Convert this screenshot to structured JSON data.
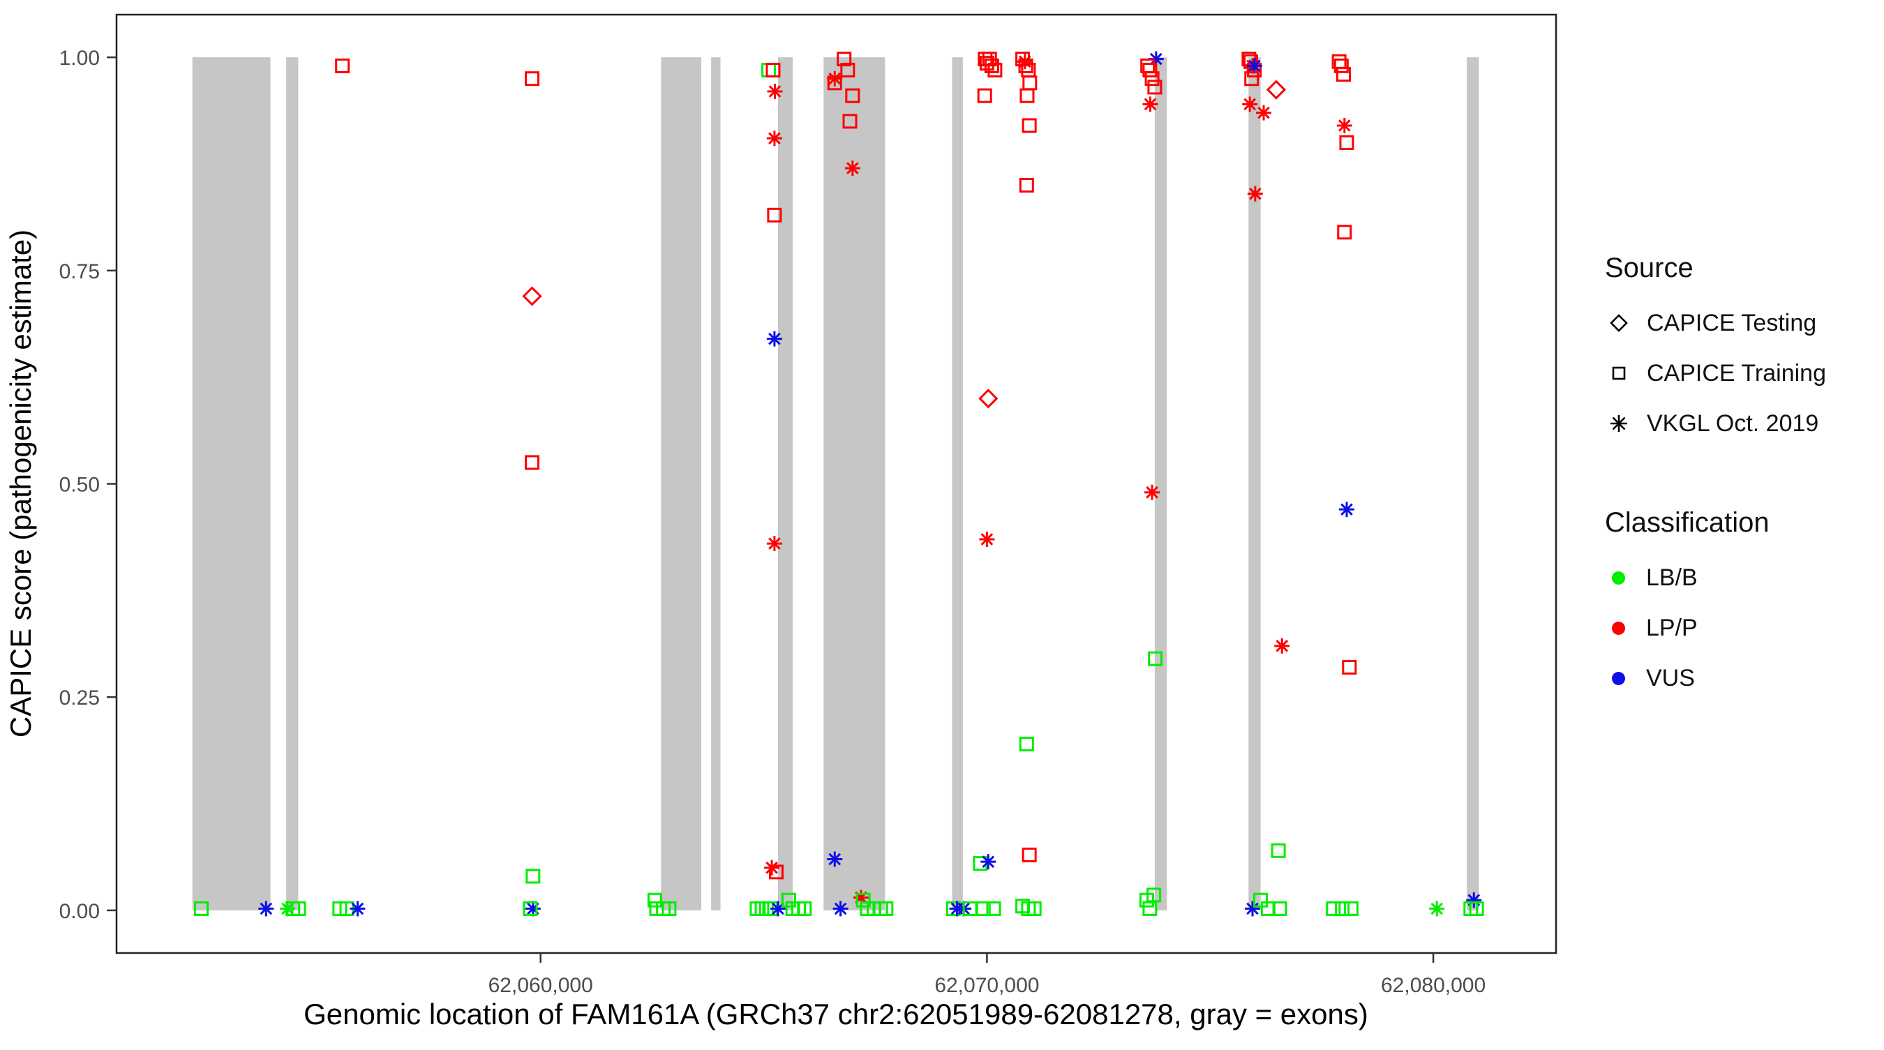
{
  "chart_data": {
    "type": "scatter",
    "xlabel": "Genomic location of FAM161A (GRCh37 chr2:62051989-62081278, gray = exons)",
    "ylabel": "CAPICE score (pathogenicity estimate)",
    "xlim": [
      62050500,
      62082750
    ],
    "ylim": [
      -0.05,
      1.05
    ],
    "grid": false,
    "x_ticks": [
      {
        "value": 62060000,
        "label": "62,060,000"
      },
      {
        "value": 62070000,
        "label": "62,070,000"
      },
      {
        "value": 62080000,
        "label": "62,080,000"
      }
    ],
    "y_ticks": [
      {
        "value": 0.0,
        "label": "0.00"
      },
      {
        "value": 0.25,
        "label": "0.25"
      },
      {
        "value": 0.5,
        "label": "0.50"
      },
      {
        "value": 0.75,
        "label": "0.75"
      },
      {
        "value": 1.0,
        "label": "1.00"
      }
    ],
    "exons_note": "gray vertical bars = exons, span score 0 to 1",
    "exons": [
      [
        62052200,
        62053950
      ],
      [
        62054300,
        62054570
      ],
      [
        62062700,
        62063600
      ],
      [
        62063820,
        62064030
      ],
      [
        62065320,
        62065650
      ],
      [
        62066340,
        62067715
      ],
      [
        62069220,
        62069460
      ],
      [
        62073760,
        62074030
      ],
      [
        62075860,
        62076130
      ],
      [
        62080750,
        62081020
      ]
    ],
    "point_format": [
      "genomic_position",
      "capice_score",
      "source (testing=diamond, training=square, vkgl=asterisk)",
      "classification"
    ],
    "points": [
      [
        62052400,
        0.002,
        "training",
        "LB/B"
      ],
      [
        62053850,
        0.002,
        "vkgl",
        "VUS"
      ],
      [
        62054330,
        0.002,
        "vkgl",
        "LB/B"
      ],
      [
        62054450,
        0.002,
        "training",
        "LB/B"
      ],
      [
        62054580,
        0.002,
        "training",
        "LB/B"
      ],
      [
        62055560,
        0.99,
        "training",
        "LP/P"
      ],
      [
        62055500,
        0.002,
        "training",
        "LB/B"
      ],
      [
        62055660,
        0.002,
        "training",
        "LB/B"
      ],
      [
        62055900,
        0.002,
        "vkgl",
        "VUS"
      ],
      [
        62059810,
        0.975,
        "training",
        "LP/P"
      ],
      [
        62059810,
        0.72,
        "testing",
        "LP/P"
      ],
      [
        62059810,
        0.525,
        "training",
        "LP/P"
      ],
      [
        62059830,
        0.04,
        "training",
        "LB/B"
      ],
      [
        62059830,
        0.002,
        "vkgl",
        "VUS"
      ],
      [
        62059770,
        0.002,
        "training",
        "LB/B"
      ],
      [
        62062560,
        0.012,
        "training",
        "LB/B"
      ],
      [
        62062600,
        0.002,
        "training",
        "LB/B"
      ],
      [
        62062750,
        0.002,
        "training",
        "LB/B"
      ],
      [
        62062880,
        0.002,
        "training",
        "LB/B"
      ],
      [
        62065110,
        0.985,
        "training",
        "LB/B"
      ],
      [
        62065210,
        0.985,
        "training",
        "LP/P"
      ],
      [
        62065250,
        0.96,
        "vkgl",
        "LP/P"
      ],
      [
        62065240,
        0.905,
        "vkgl",
        "LP/P"
      ],
      [
        62065240,
        0.815,
        "training",
        "LP/P"
      ],
      [
        62065240,
        0.67,
        "vkgl",
        "VUS"
      ],
      [
        62065240,
        0.43,
        "vkgl",
        "LP/P"
      ],
      [
        62065180,
        0.05,
        "vkgl",
        "LP/P"
      ],
      [
        62065280,
        0.045,
        "training",
        "LP/P"
      ],
      [
        62064850,
        0.002,
        "training",
        "LB/B"
      ],
      [
        62064960,
        0.002,
        "training",
        "LB/B"
      ],
      [
        62065060,
        0.002,
        "training",
        "LB/B"
      ],
      [
        62065160,
        0.002,
        "training",
        "LB/B"
      ],
      [
        62065320,
        0.002,
        "vkgl",
        "VUS"
      ],
      [
        62065560,
        0.012,
        "training",
        "LB/B"
      ],
      [
        62065650,
        0.002,
        "training",
        "LB/B"
      ],
      [
        62065780,
        0.002,
        "training",
        "LB/B"
      ],
      [
        62065910,
        0.002,
        "training",
        "LB/B"
      ],
      [
        62066590,
        0.975,
        "vkgl",
        "LP/P"
      ],
      [
        62066590,
        0.97,
        "training",
        "LP/P"
      ],
      [
        62066800,
        0.998,
        "training",
        "LP/P"
      ],
      [
        62066880,
        0.985,
        "training",
        "LP/P"
      ],
      [
        62066990,
        0.955,
        "training",
        "LP/P"
      ],
      [
        62066930,
        0.925,
        "training",
        "LP/P"
      ],
      [
        62066990,
        0.87,
        "vkgl",
        "LP/P"
      ],
      [
        62066590,
        0.06,
        "vkgl",
        "VUS"
      ],
      [
        62066720,
        0.002,
        "vkgl",
        "VUS"
      ],
      [
        62067180,
        0.015,
        "vkgl",
        "LP/P"
      ],
      [
        62067230,
        0.012,
        "training",
        "LB/B"
      ],
      [
        62067320,
        0.002,
        "training",
        "LB/B"
      ],
      [
        62067470,
        0.002,
        "training",
        "LB/B"
      ],
      [
        62067620,
        0.002,
        "training",
        "LB/B"
      ],
      [
        62067740,
        0.002,
        "training",
        "LB/B"
      ],
      [
        62069250,
        0.002,
        "training",
        "LB/B"
      ],
      [
        62069330,
        0.002,
        "vkgl",
        "VUS"
      ],
      [
        62069480,
        0.002,
        "vkgl",
        "VUS"
      ],
      [
        62069620,
        0.002,
        "training",
        "LB/B"
      ],
      [
        62069850,
        0.055,
        "training",
        "LB/B"
      ],
      [
        62070030,
        0.057,
        "vkgl",
        "VUS"
      ],
      [
        62069950,
        0.955,
        "training",
        "LP/P"
      ],
      [
        62069960,
        0.998,
        "training",
        "LP/P"
      ],
      [
        62070000,
        0.993,
        "training",
        "LP/P"
      ],
      [
        62070060,
        0.998,
        "training",
        "LP/P"
      ],
      [
        62070110,
        0.99,
        "training",
        "LP/P"
      ],
      [
        62070180,
        0.985,
        "training",
        "LP/P"
      ],
      [
        62070030,
        0.6,
        "testing",
        "LP/P"
      ],
      [
        62070000,
        0.435,
        "vkgl",
        "LP/P"
      ],
      [
        62069920,
        0.002,
        "training",
        "LB/B"
      ],
      [
        62070150,
        0.002,
        "training",
        "LB/B"
      ],
      [
        62070800,
        0.998,
        "training",
        "LP/P"
      ],
      [
        62070850,
        0.995,
        "vkgl",
        "LP/P"
      ],
      [
        62070870,
        0.99,
        "training",
        "LP/P"
      ],
      [
        62070930,
        0.985,
        "training",
        "LP/P"
      ],
      [
        62070960,
        0.97,
        "training",
        "LP/P"
      ],
      [
        62070900,
        0.955,
        "training",
        "LP/P"
      ],
      [
        62070950,
        0.92,
        "training",
        "LP/P"
      ],
      [
        62070890,
        0.85,
        "training",
        "LP/P"
      ],
      [
        62070890,
        0.195,
        "training",
        "LB/B"
      ],
      [
        62070950,
        0.065,
        "training",
        "LP/P"
      ],
      [
        62070800,
        0.005,
        "training",
        "LB/B"
      ],
      [
        62070930,
        0.002,
        "training",
        "LB/B"
      ],
      [
        62071060,
        0.002,
        "training",
        "LB/B"
      ],
      [
        62073790,
        0.998,
        "vkgl",
        "VUS"
      ],
      [
        62073600,
        0.99,
        "training",
        "LP/P"
      ],
      [
        62073650,
        0.985,
        "training",
        "LP/P"
      ],
      [
        62073700,
        0.975,
        "training",
        "LP/P"
      ],
      [
        62073760,
        0.965,
        "training",
        "LP/P"
      ],
      [
        62073660,
        0.945,
        "vkgl",
        "LP/P"
      ],
      [
        62073700,
        0.49,
        "vkgl",
        "LP/P"
      ],
      [
        62073770,
        0.295,
        "training",
        "LB/B"
      ],
      [
        62073580,
        0.012,
        "training",
        "LB/B"
      ],
      [
        62073650,
        0.002,
        "training",
        "LB/B"
      ],
      [
        62073740,
        0.018,
        "training",
        "LB/B"
      ],
      [
        62075870,
        0.998,
        "training",
        "LP/P"
      ],
      [
        62075910,
        0.995,
        "training",
        "LP/P"
      ],
      [
        62075950,
        0.99,
        "vkgl",
        "LP/P"
      ],
      [
        62075990,
        0.985,
        "training",
        "LP/P"
      ],
      [
        62075995,
        0.99,
        "vkgl",
        "VUS"
      ],
      [
        62075930,
        0.975,
        "training",
        "LP/P"
      ],
      [
        62075890,
        0.945,
        "vkgl",
        "LP/P"
      ],
      [
        62076200,
        0.935,
        "vkgl",
        "LP/P"
      ],
      [
        62076480,
        0.962,
        "testing",
        "LP/P"
      ],
      [
        62076010,
        0.84,
        "vkgl",
        "LP/P"
      ],
      [
        62076610,
        0.31,
        "vkgl",
        "LP/P"
      ],
      [
        62076530,
        0.07,
        "training",
        "LB/B"
      ],
      [
        62075950,
        0.002,
        "vkgl",
        "VUS"
      ],
      [
        62076130,
        0.012,
        "training",
        "LB/B"
      ],
      [
        62076300,
        0.002,
        "training",
        "LB/B"
      ],
      [
        62076560,
        0.002,
        "training",
        "LB/B"
      ],
      [
        62077890,
        0.995,
        "training",
        "LP/P"
      ],
      [
        62077940,
        0.99,
        "training",
        "LP/P"
      ],
      [
        62077990,
        0.98,
        "training",
        "LP/P"
      ],
      [
        62078010,
        0.92,
        "vkgl",
        "LP/P"
      ],
      [
        62078060,
        0.9,
        "training",
        "LP/P"
      ],
      [
        62078010,
        0.795,
        "training",
        "LP/P"
      ],
      [
        62078060,
        0.47,
        "vkgl",
        "VUS"
      ],
      [
        62078120,
        0.285,
        "training",
        "LP/P"
      ],
      [
        62077760,
        0.002,
        "training",
        "LB/B"
      ],
      [
        62077960,
        0.002,
        "training",
        "LB/B"
      ],
      [
        62078160,
        0.002,
        "training",
        "LB/B"
      ],
      [
        62080080,
        0.002,
        "vkgl",
        "LB/B"
      ],
      [
        62080910,
        0.012,
        "vkgl",
        "VUS"
      ],
      [
        62080840,
        0.002,
        "training",
        "LB/B"
      ],
      [
        62080970,
        0.002,
        "training",
        "LB/B"
      ]
    ]
  },
  "legend": {
    "source": {
      "title": "Source",
      "items": [
        {
          "label": "CAPICE Testing",
          "shape": "diamond"
        },
        {
          "label": "CAPICE Training",
          "shape": "square"
        },
        {
          "label": "VKGL Oct. 2019",
          "shape": "asterisk"
        }
      ]
    },
    "classification": {
      "title": "Classification",
      "items": [
        {
          "label": "LB/B",
          "color": "#00ee00"
        },
        {
          "label": "LP/P",
          "color": "#ff0000"
        },
        {
          "label": "VUS",
          "color": "#0f0fe8"
        }
      ]
    }
  },
  "colors": {
    "LB/B": "#00ee00",
    "LP/P": "#ff0000",
    "VUS": "#0f0fe8",
    "exon": "#c6c6c6",
    "panel_border": "#222222",
    "tick": "#333333",
    "tick_label": "#4d4d4d"
  }
}
